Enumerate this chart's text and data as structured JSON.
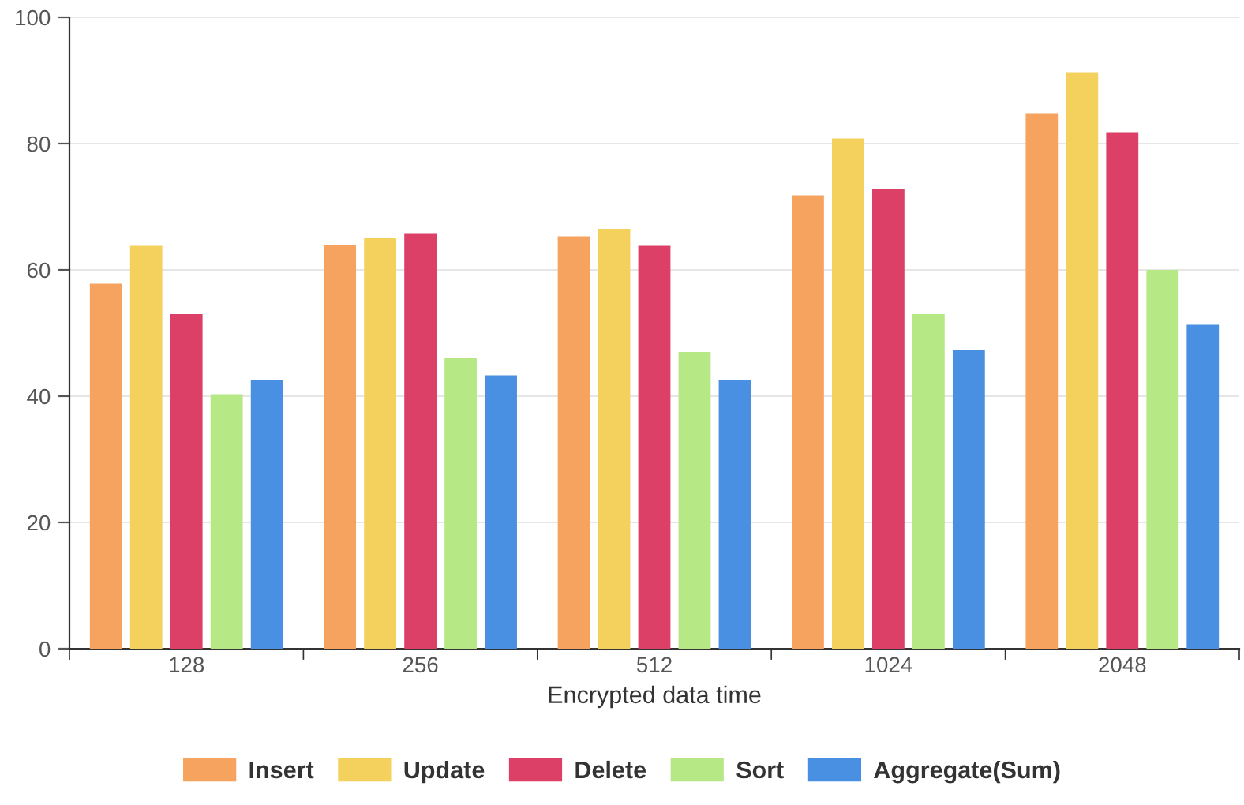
{
  "chart_data": {
    "type": "bar",
    "xlabel": "Encrypted data time",
    "categories": [
      "128",
      "256",
      "512",
      "1024",
      "2048"
    ],
    "series": [
      {
        "name": "Insert",
        "color": "#f5a35f",
        "values": [
          57.8,
          64,
          65.3,
          71.8,
          84.8
        ]
      },
      {
        "name": "Update",
        "color": "#f4d15c",
        "values": [
          63.8,
          65,
          66.5,
          80.8,
          91.3
        ]
      },
      {
        "name": "Delete",
        "color": "#dc4066",
        "values": [
          53,
          65.8,
          63.8,
          72.8,
          81.8
        ]
      },
      {
        "name": "Sort",
        "color": "#b7e886",
        "values": [
          40.3,
          46,
          47,
          53,
          60
        ]
      },
      {
        "name": "Aggregate(Sum)",
        "color": "#4a90e2",
        "values": [
          42.5,
          43.3,
          42.5,
          47.3,
          51.3
        ]
      }
    ],
    "ylim": [
      0,
      100
    ],
    "yticks": [
      0,
      20,
      40,
      60,
      80,
      100
    ],
    "grid": "y",
    "legend": "bottom"
  }
}
